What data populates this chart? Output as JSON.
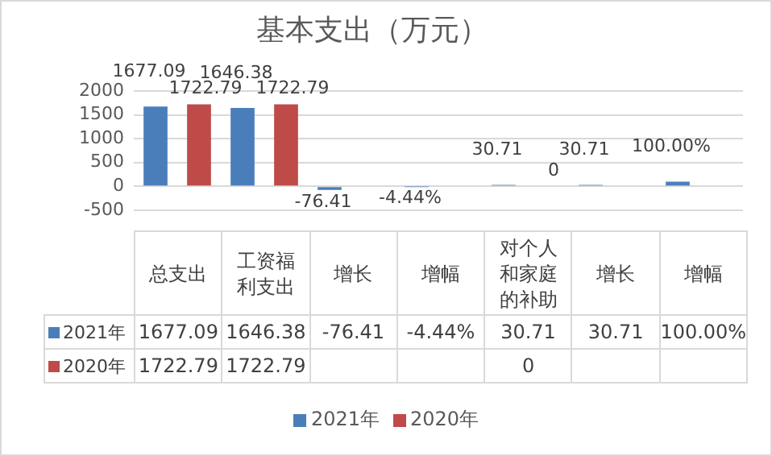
{
  "chart_data": {
    "type": "bar",
    "title": "基本支出（万元）",
    "categories": [
      "总支出",
      "工资福利支出",
      "增长",
      "增幅",
      "对个人和家庭的补助",
      "增长",
      "增幅"
    ],
    "series": [
      {
        "name": "2021年",
        "color": "#4a7ebb",
        "values": [
          1677.09,
          1646.38,
          -76.41,
          -4.44,
          30.71,
          30.71,
          100
        ],
        "value_labels": [
          "1677.09",
          "1646.38",
          "-76.41",
          "-4.44%",
          "30.71",
          "30.71",
          "100.00%"
        ]
      },
      {
        "name": "2020年",
        "color": "#be4b48",
        "values": [
          1722.79,
          1722.79,
          null,
          null,
          0,
          null,
          null
        ],
        "value_labels": [
          "1722.79",
          "1722.79",
          null,
          null,
          "0",
          null,
          null
        ]
      }
    ],
    "ylim": [
      -500,
      2000
    ],
    "yticks": [
      -500,
      0,
      500,
      1000,
      1500,
      2000
    ],
    "grid": "y",
    "legend": "bottom",
    "data_labels": true
  }
}
